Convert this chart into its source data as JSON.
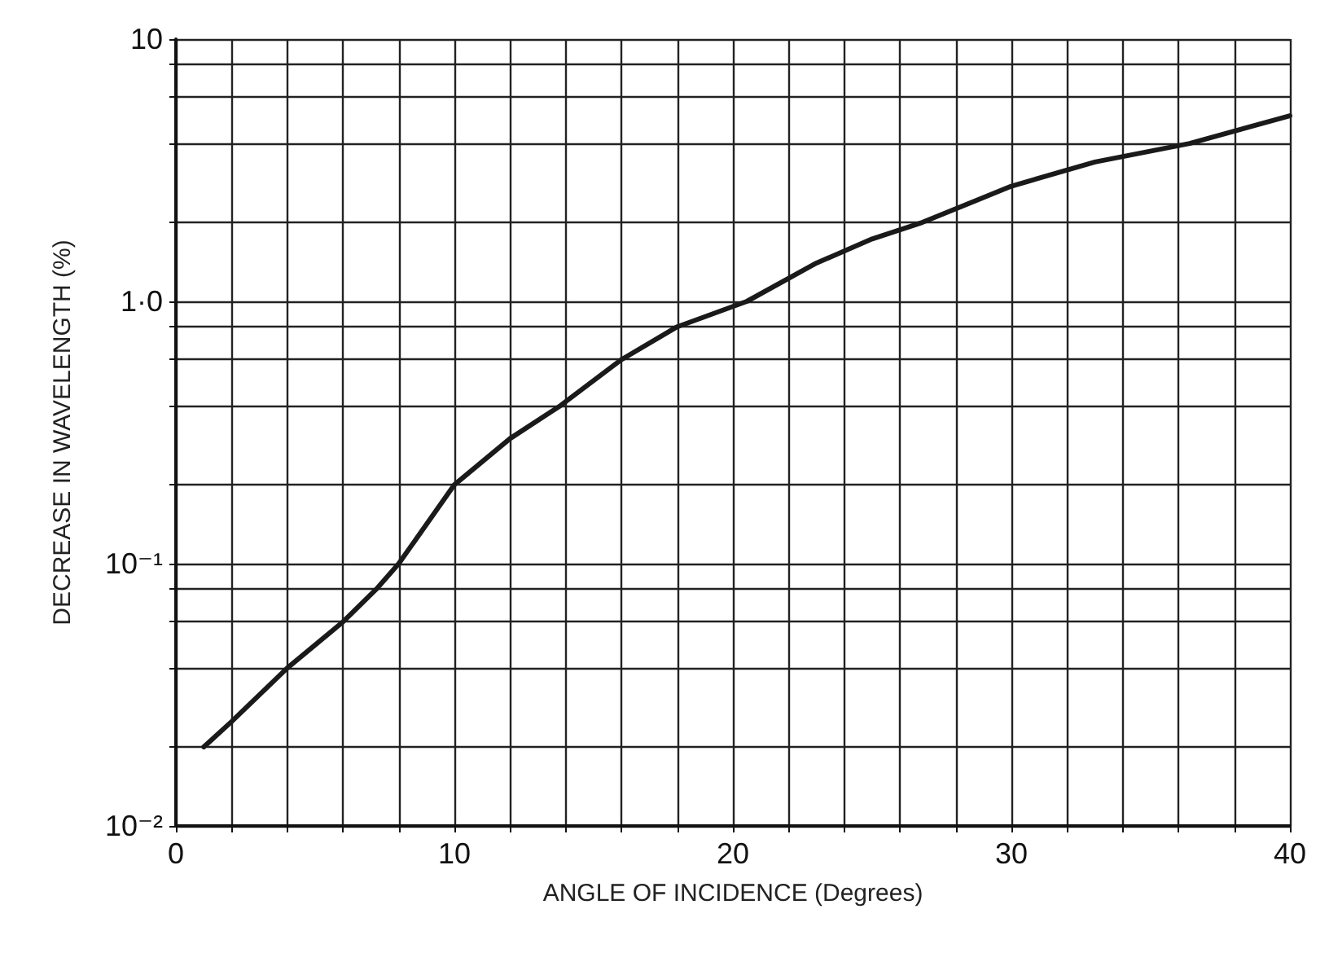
{
  "chart_data": {
    "type": "line",
    "xlabel": "ANGLE OF INCIDENCE (Degrees)",
    "ylabel": "DECREASE IN WAVELENGTH (%)",
    "x": [
      1,
      2,
      4,
      6,
      7.2,
      8,
      10,
      12,
      13.8,
      16,
      18,
      20.5,
      23,
      25,
      26.8,
      30,
      33,
      36.4,
      40
    ],
    "series": [
      {
        "color": "#1a1a1a",
        "values": [
          0.02,
          0.025,
          0.04,
          0.06,
          0.08,
          0.1,
          0.2,
          0.3,
          0.4,
          0.6,
          0.8,
          1.0,
          1.4,
          1.73,
          2,
          2.75,
          3.4,
          4,
          5.1
        ]
      }
    ],
    "log": "y",
    "xlim": [
      0,
      40
    ],
    "ylim": [
      0.01,
      10
    ],
    "xticks": [
      0,
      {
        "value": 2,
        "label": null
      },
      {
        "value": 4,
        "label": null
      },
      {
        "value": 6,
        "label": null
      },
      {
        "value": 8,
        "label": null
      },
      10,
      {
        "value": 12,
        "label": null
      },
      {
        "value": 14,
        "label": null
      },
      {
        "value": 16,
        "label": null
      },
      {
        "value": 18,
        "label": null
      },
      20,
      {
        "value": 22,
        "label": null
      },
      {
        "value": 24,
        "label": null
      },
      {
        "value": 26,
        "label": null
      },
      {
        "value": 28,
        "label": null
      },
      30,
      {
        "value": 32,
        "label": null
      },
      {
        "value": 34,
        "label": null
      },
      {
        "value": 36,
        "label": null
      },
      {
        "value": 38,
        "label": null
      },
      40
    ],
    "yticks": [
      {
        "value": 0.01,
        "label": "10⁻²"
      },
      {
        "value": 0.02,
        "label": null
      },
      {
        "value": 0.04,
        "label": null
      },
      {
        "value": 0.06,
        "label": null
      },
      {
        "value": 0.08,
        "label": null
      },
      {
        "value": 0.1,
        "label": "10⁻¹"
      },
      {
        "value": 0.2,
        "label": null
      },
      {
        "value": 0.4,
        "label": null
      },
      {
        "value": 0.6,
        "label": null
      },
      {
        "value": 0.8,
        "label": null
      },
      {
        "value": 1,
        "label": "1·0"
      },
      {
        "value": 2,
        "label": null
      },
      {
        "value": 4,
        "label": null
      },
      {
        "value": 6,
        "label": null
      },
      {
        "value": 8,
        "label": null
      },
      {
        "value": 10,
        "label": "10"
      }
    ],
    "grid": true,
    "marker": "none",
    "line_style": "solid"
  }
}
